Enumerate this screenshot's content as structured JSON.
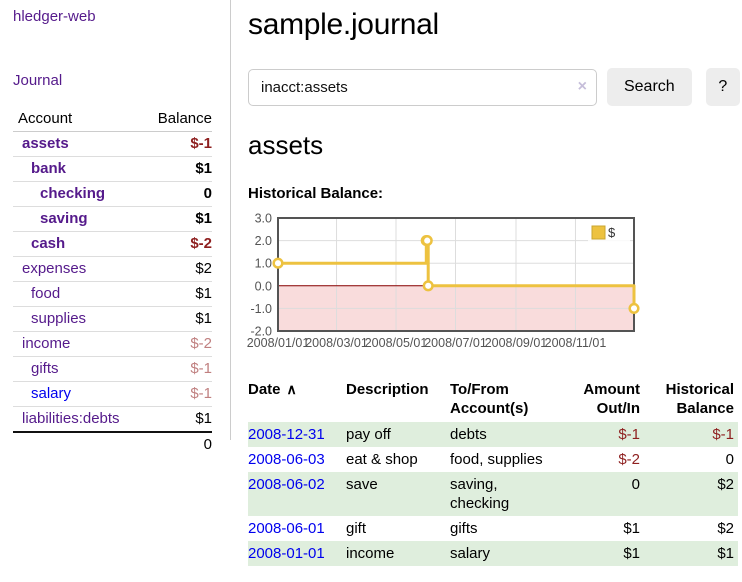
{
  "colors": {
    "purple_link": "#551A8B",
    "blue_link": "#0000EE",
    "negative_strong": "#8E1F1F",
    "negative_dim": "#C08080",
    "row_green": "#DFEEDD",
    "series_gold": "#EDC240"
  },
  "app": {
    "brand": "hledger-web"
  },
  "sidebar": {
    "journal_link": "Journal",
    "accounts_table": {
      "headers": [
        "Account",
        "Balance"
      ],
      "rows": [
        {
          "name": "assets",
          "level": 1,
          "bold": true,
          "name_style": "visited",
          "balance": "$-1",
          "balance_style": "neg"
        },
        {
          "name": "bank",
          "level": 2,
          "bold": true,
          "name_style": "visited",
          "balance": "$1",
          "balance_style": "pos"
        },
        {
          "name": "checking",
          "level": 3,
          "bold": true,
          "name_style": "visited",
          "balance": "0",
          "balance_style": "pos"
        },
        {
          "name": "saving",
          "level": 3,
          "bold": true,
          "name_style": "visited",
          "balance": "$1",
          "balance_style": "pos"
        },
        {
          "name": "cash",
          "level": 2,
          "bold": true,
          "name_style": "visited",
          "balance": "$-2",
          "balance_style": "neg"
        },
        {
          "name": "expenses",
          "level": 1,
          "bold": false,
          "name_style": "visited",
          "balance": "$2",
          "balance_style": "pos"
        },
        {
          "name": "food",
          "level": 2,
          "bold": false,
          "name_style": "visited",
          "balance": "$1",
          "balance_style": "pos"
        },
        {
          "name": "supplies",
          "level": 2,
          "bold": false,
          "name_style": "visited",
          "balance": "$1",
          "balance_style": "pos"
        },
        {
          "name": "income",
          "level": 1,
          "bold": false,
          "name_style": "visited",
          "balance": "$-2",
          "balance_style": "neg-dim"
        },
        {
          "name": "gifts",
          "level": 2,
          "bold": false,
          "name_style": "visited",
          "balance": "$-1",
          "balance_style": "neg-dim"
        },
        {
          "name": "salary",
          "level": 2,
          "bold": false,
          "name_style": "link",
          "balance": "$-1",
          "balance_style": "neg-dim"
        },
        {
          "name": "liabilities:debts",
          "level": 1,
          "bold": false,
          "name_style": "visited",
          "balance": "$1",
          "balance_style": "pos"
        }
      ],
      "total": "0"
    }
  },
  "header": {
    "title": "sample.journal"
  },
  "search": {
    "value": "inacct:assets",
    "clear_icon": "×",
    "search_button": "Search",
    "help_button": "?"
  },
  "account_page": {
    "title": "assets",
    "chart_label": "Historical Balance:"
  },
  "chart_data": {
    "type": "line",
    "style": "steps",
    "series": [
      {
        "name": "$",
        "color": "#EDC240",
        "points": [
          [
            "2008-01-01",
            1
          ],
          [
            "2008-06-01",
            2
          ],
          [
            "2008-06-02",
            2
          ],
          [
            "2008-06-03",
            0
          ],
          [
            "2008-12-31",
            -1
          ]
        ]
      }
    ],
    "xlim": [
      "2008-01-01",
      "2008-12-31"
    ],
    "ylim": [
      -2,
      3
    ],
    "x_ticks": [
      {
        "date": "2008-01-01",
        "label": "2008/01/01"
      },
      {
        "date": "2008-03-01",
        "label": "2008/03/01"
      },
      {
        "date": "2008-05-01",
        "label": "2008/05/01"
      },
      {
        "date": "2008-07-01",
        "label": "2008/07/01"
      },
      {
        "date": "2008-09-01",
        "label": "2008/09/01"
      },
      {
        "date": "2008-11-01",
        "label": "2008/11/01"
      }
    ],
    "y_ticks": [
      {
        "v": 3,
        "label": "3.0"
      },
      {
        "v": 2,
        "label": "2.0"
      },
      {
        "v": 1,
        "label": "1.0"
      },
      {
        "v": 0,
        "label": "0.0"
      },
      {
        "v": -1,
        "label": "-1.0"
      },
      {
        "v": -2,
        "label": "-2.0"
      }
    ],
    "grid": true,
    "legend": {
      "label": "$",
      "position": "top-right"
    },
    "negative_region_color": "#F9DCDC",
    "zero_line_color": "#8B0000",
    "border_color": "#545454",
    "grid_color": "#dddddd",
    "tick_text_color": "#545454"
  },
  "register": {
    "sort_icon": "∧",
    "headers": {
      "date": [
        "Date"
      ],
      "description": [
        "Description"
      ],
      "accounts": [
        "To/From",
        "Account(s)"
      ],
      "amount": [
        "Amount",
        "Out/In"
      ],
      "balance": [
        "Historical",
        "Balance"
      ]
    },
    "rows": [
      {
        "date": "2008-12-31",
        "description": "pay off",
        "accounts": [
          "debts"
        ],
        "amount": "$-1",
        "amount_style": "neg",
        "balance": "$-1",
        "balance_style": "neg"
      },
      {
        "date": "2008-06-03",
        "description": "eat & shop",
        "accounts": [
          "food, supplies"
        ],
        "amount": "$-2",
        "amount_style": "neg",
        "balance": "0",
        "balance_style": "pos"
      },
      {
        "date": "2008-06-02",
        "description": "save",
        "accounts": [
          "saving,",
          "checking"
        ],
        "amount": "0",
        "amount_style": "pos",
        "balance": "$2",
        "balance_style": "pos"
      },
      {
        "date": "2008-06-01",
        "description": "gift",
        "accounts": [
          "gifts"
        ],
        "amount": "$1",
        "amount_style": "pos",
        "balance": "$2",
        "balance_style": "pos"
      },
      {
        "date": "2008-01-01",
        "description": "income",
        "accounts": [
          "salary"
        ],
        "amount": "$1",
        "amount_style": "pos",
        "balance": "$1",
        "balance_style": "pos"
      }
    ]
  }
}
